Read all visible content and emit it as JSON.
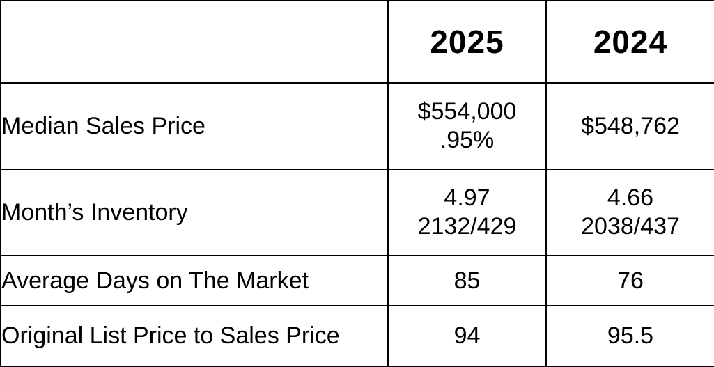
{
  "page": {
    "background_color": "#ffffff",
    "border_color": "#000000",
    "text_color": "#000000"
  },
  "table": {
    "header": {
      "col_label": "",
      "col_2025": "2025",
      "col_2024": "2024"
    },
    "rows": [
      {
        "label": "Median Sales Price",
        "v2025": "$554,000\n.95%",
        "v2024": "$548,762"
      },
      {
        "label": "Month’s Inventory",
        "v2025": "4.97\n2132/429",
        "v2024": "4.66\n2038/437"
      },
      {
        "label": "Average Days on The Market",
        "v2025": "85",
        "v2024": "76"
      },
      {
        "label": "Original List Price to Sales Price",
        "v2025": "94",
        "v2024": "95.5"
      }
    ]
  },
  "chart_data": {
    "type": "table",
    "title": "",
    "columns": [
      "",
      "2025",
      "2024"
    ],
    "rows": [
      [
        "Median Sales Price",
        "$554,000 .95%",
        "$548,762"
      ],
      [
        "Month's Inventory",
        "4.97 2132/429",
        "4.66 2038/437"
      ],
      [
        "Average Days on The Market",
        "85",
        "76"
      ],
      [
        "Original List Price to Sales Price",
        "94",
        "95.5"
      ]
    ],
    "layout": {
      "grid": "all-borders",
      "header_style": "bold",
      "value_alignment": "center",
      "label_alignment": "left"
    }
  }
}
